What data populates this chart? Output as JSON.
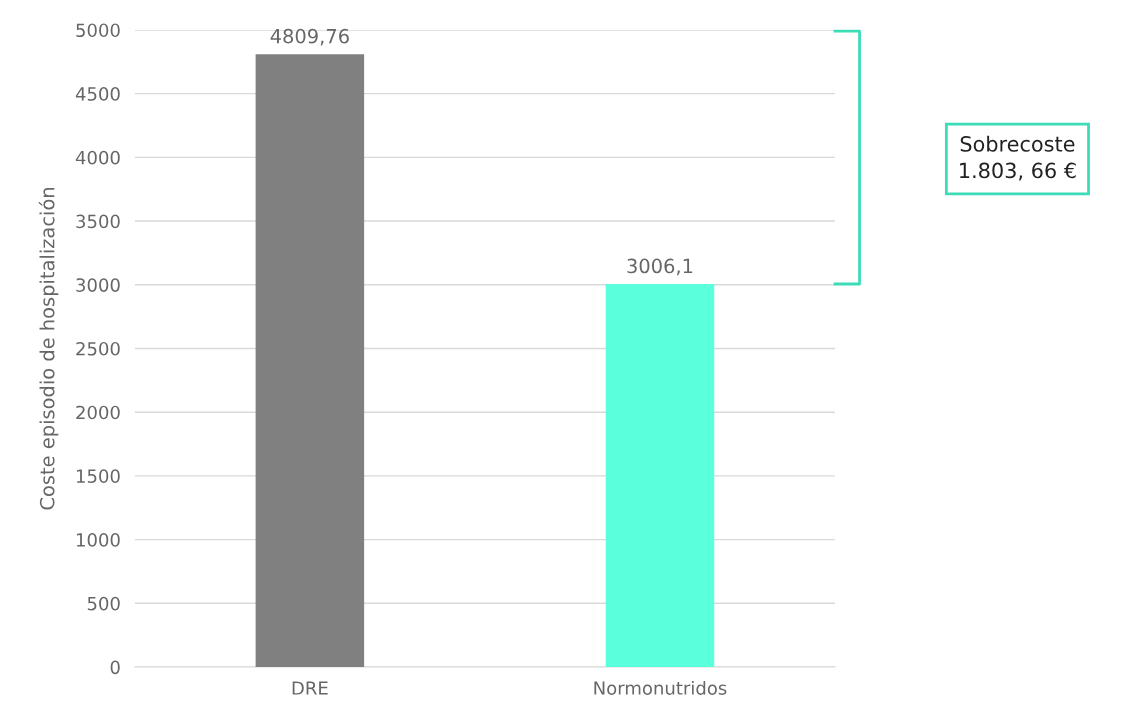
{
  "chart_data": {
    "type": "bar",
    "categories": [
      "DRE",
      "Normonutridos"
    ],
    "values": [
      4809.76,
      3006.1
    ],
    "colors": [
      "#808080",
      "#5affdc"
    ],
    "value_labels": [
      "4809,76",
      "3006,1"
    ],
    "ylabel": "Coste episodio de hospitalización",
    "ylim": [
      0,
      5000
    ],
    "yticks": [
      0,
      500,
      1000,
      1500,
      2000,
      2500,
      3000,
      3500,
      4000,
      4500,
      5000
    ],
    "grid": "y",
    "annotations": [
      "Sobrecoste\n1.803, 66 €"
    ]
  }
}
